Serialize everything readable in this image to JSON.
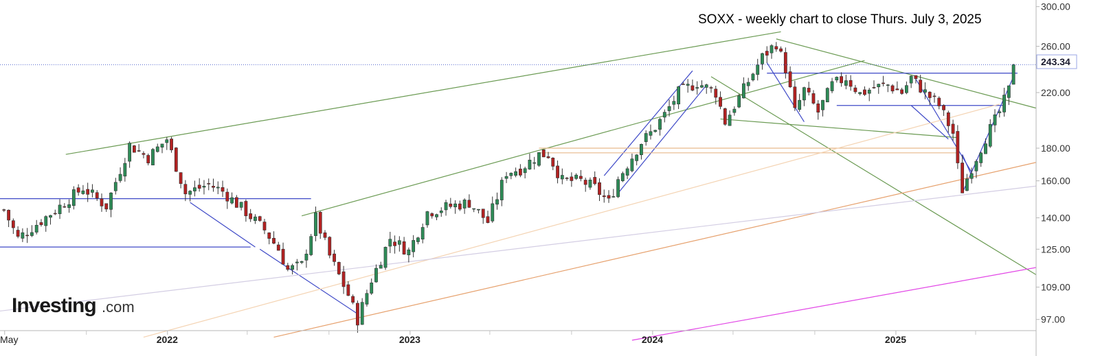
{
  "chart_data": {
    "type": "candlestick",
    "title": "SOXX - weekly chart to close Thurs. July 3, 2025",
    "watermark": {
      "brand": "Investing",
      "suffix": ".com"
    },
    "y_scale": "log",
    "ylim": [
      90,
      305
    ],
    "y_ticks": [
      "300.00",
      "260.00",
      "220.00",
      "180.00",
      "160.00",
      "140.00",
      "125.00",
      "109.00",
      "97.00"
    ],
    "current_price": {
      "value": 243.34,
      "label": "243.34"
    },
    "x_ticks": [
      {
        "label": "May",
        "date": "2021-05-01"
      },
      {
        "label": "2022",
        "date": "2022-01-01"
      },
      {
        "label": "2023",
        "date": "2023-01-01"
      },
      {
        "label": "2024",
        "date": "2024-01-01"
      },
      {
        "label": "2025",
        "date": "2025-01-01"
      }
    ],
    "x_minor_ticks": [
      "2021-09-01",
      "2022-05-01",
      "2022-09-01",
      "2023-05-01",
      "2023-09-01",
      "2024-05-01",
      "2024-09-01",
      "2025-05-01"
    ],
    "xlim": [
      "2021-04-24",
      "2025-07-31"
    ],
    "grid": false,
    "anchors": [
      [
        "2021-04-30",
        144
      ],
      [
        "2021-05-21",
        130
      ],
      [
        "2021-07-16",
        144
      ],
      [
        "2021-08-27",
        156
      ],
      [
        "2021-10-01",
        146
      ],
      [
        "2021-11-05",
        182
      ],
      [
        "2021-12-03",
        174
      ],
      [
        "2021-12-31",
        186
      ],
      [
        "2022-01-28",
        153
      ],
      [
        "2022-03-04",
        158
      ],
      [
        "2022-03-25",
        154
      ],
      [
        "2022-04-29",
        143
      ],
      [
        "2022-05-27",
        134
      ],
      [
        "2022-06-17",
        125
      ],
      [
        "2022-07-01",
        116
      ],
      [
        "2022-07-22",
        118
      ],
      [
        "2022-08-12",
        140
      ],
      [
        "2022-09-02",
        122
      ],
      [
        "2022-09-30",
        106
      ],
      [
        "2022-10-14",
        97
      ],
      [
        "2022-11-04",
        112
      ],
      [
        "2022-12-02",
        130
      ],
      [
        "2022-12-30",
        124
      ],
      [
        "2023-01-27",
        143
      ],
      [
        "2023-03-03",
        146
      ],
      [
        "2023-03-31",
        148
      ],
      [
        "2023-04-28",
        138
      ],
      [
        "2023-05-26",
        165
      ],
      [
        "2023-06-16",
        167
      ],
      [
        "2023-07-14",
        176
      ],
      [
        "2023-07-28",
        176
      ],
      [
        "2023-08-18",
        160
      ],
      [
        "2023-09-15",
        160
      ],
      [
        "2023-10-06",
        156
      ],
      [
        "2023-10-27",
        148
      ],
      [
        "2023-11-10",
        161
      ],
      [
        "2023-12-15",
        184
      ],
      [
        "2023-12-29",
        190
      ],
      [
        "2024-01-19",
        203
      ],
      [
        "2024-02-09",
        220
      ],
      [
        "2024-03-08",
        228
      ],
      [
        "2024-04-05",
        220
      ],
      [
        "2024-04-19",
        198
      ],
      [
        "2024-05-10",
        216
      ],
      [
        "2024-05-31",
        236
      ],
      [
        "2024-06-14",
        250
      ],
      [
        "2024-07-05",
        263
      ],
      [
        "2024-07-19",
        240
      ],
      [
        "2024-08-02",
        205
      ],
      [
        "2024-08-16",
        222
      ],
      [
        "2024-09-06",
        205
      ],
      [
        "2024-09-27",
        226
      ],
      [
        "2024-10-18",
        232
      ],
      [
        "2024-11-08",
        219
      ],
      [
        "2024-11-29",
        224
      ],
      [
        "2024-12-20",
        226
      ],
      [
        "2025-01-10",
        220
      ],
      [
        "2025-01-24",
        232
      ],
      [
        "2025-02-14",
        220
      ],
      [
        "2025-03-07",
        210
      ],
      [
        "2025-03-28",
        190
      ],
      [
        "2025-04-04",
        168
      ],
      [
        "2025-04-11",
        155
      ],
      [
        "2025-04-25",
        168
      ],
      [
        "2025-05-16",
        187
      ],
      [
        "2025-06-06",
        205
      ],
      [
        "2025-06-20",
        222
      ],
      [
        "2025-07-03",
        243.34
      ]
    ],
    "trendlines": [
      {
        "color": "#6a9a52",
        "points": [
          [
            "2021-08-01",
            176
          ],
          [
            "2024-07-12",
            274
          ]
        ]
      },
      {
        "color": "#6a9a52",
        "points": [
          [
            "2022-07-22",
            141
          ],
          [
            "2024-11-15",
            247
          ]
        ]
      },
      {
        "color": "#6a9a52",
        "points": [
          [
            "2024-07-05",
            267
          ],
          [
            "2025-07-31",
            208
          ]
        ]
      },
      {
        "color": "#6a9a52",
        "points": [
          [
            "2024-03-29",
            233
          ],
          [
            "2025-07-31",
            114
          ]
        ]
      },
      {
        "color": "#6a9a52",
        "points": [
          [
            "2024-04-12",
            200
          ],
          [
            "2025-04-04",
            187
          ]
        ]
      },
      {
        "color": "#3e49c7",
        "points": [
          [
            "2021-04-24",
            150
          ],
          [
            "2022-08-05",
            150
          ]
        ]
      },
      {
        "color": "#3e49c7",
        "points": [
          [
            "2021-04-24",
            126
          ],
          [
            "2022-05-06",
            126
          ]
        ]
      },
      {
        "color": "#3e49c7",
        "points": [
          [
            "2022-02-04",
            148
          ],
          [
            "2022-05-13",
            126
          ]
        ]
      },
      {
        "color": "#3e49c7",
        "points": [
          [
            "2022-05-20",
            125
          ],
          [
            "2022-10-14",
            99
          ]
        ]
      },
      {
        "color": "#3e49c7",
        "points": [
          [
            "2023-10-20",
            163
          ],
          [
            "2024-03-01",
            238
          ]
        ]
      },
      {
        "color": "#3e49c7",
        "points": [
          [
            "2023-11-10",
            153
          ],
          [
            "2024-03-22",
            226
          ]
        ]
      },
      {
        "color": "#3e49c7",
        "points": [
          [
            "2024-06-21",
            245
          ],
          [
            "2024-08-16",
            198
          ]
        ]
      },
      {
        "color": "#3e49c7",
        "points": [
          [
            "2024-06-21",
            236
          ],
          [
            "2025-07-03",
            236
          ]
        ]
      },
      {
        "color": "#3e49c7",
        "points": [
          [
            "2024-10-04",
            210
          ],
          [
            "2025-06-13",
            210
          ]
        ]
      },
      {
        "color": "#3e49c7",
        "points": [
          [
            "2025-01-24",
            210
          ],
          [
            "2025-03-21",
            186
          ]
        ]
      },
      {
        "color": "#3e49c7",
        "points": [
          [
            "2025-01-31",
            231
          ],
          [
            "2025-04-25",
            165
          ]
        ]
      },
      {
        "color": "#3e49c7",
        "points": [
          [
            "2025-04-11",
            153
          ],
          [
            "2025-06-27",
            233
          ]
        ]
      },
      {
        "color": "#3e49c7",
        "points": [
          [
            "2025-04-11",
            176
          ],
          [
            "2025-04-25",
            163
          ]
        ]
      },
      {
        "color": "#e8b98a",
        "points": [
          [
            "2023-07-14",
            180
          ],
          [
            "2025-04-04",
            180
          ]
        ]
      },
      {
        "color": "#e8b98a",
        "points": [
          [
            "2023-07-14",
            177
          ],
          [
            "2025-04-04",
            177
          ]
        ]
      },
      {
        "color": "#f4d3b2",
        "points": [
          [
            "2021-11-26",
            91
          ],
          [
            "2025-06-06",
            211
          ]
        ]
      },
      {
        "color": "#e6a06c",
        "points": [
          [
            "2022-06-10",
            91
          ],
          [
            "2025-07-31",
            171
          ]
        ]
      },
      {
        "color": "#d3cde3",
        "points": [
          [
            "2021-04-24",
            100
          ],
          [
            "2025-07-31",
            157
          ]
        ]
      },
      {
        "color": "#e246e6",
        "points": [
          [
            "2023-12-01",
            90
          ],
          [
            "2025-07-31",
            117
          ]
        ]
      }
    ]
  }
}
